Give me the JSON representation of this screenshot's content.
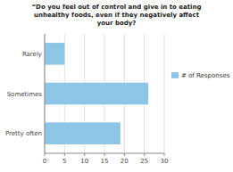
{
  "chart_data": {
    "type": "bar",
    "orientation": "horizontal",
    "title": "“Do you feel out of control and give in to eating\nunhealthy foods, even if they negatively affect\nyour body?",
    "categories": [
      "Pretty often",
      "Sometimes",
      "Rarely"
    ],
    "series": [
      {
        "name": "# of Responses",
        "color": "#8ec6e8",
        "values": [
          19,
          26,
          5
        ]
      }
    ],
    "xlim": [
      0,
      30
    ],
    "xticks": [
      0,
      5,
      10,
      15,
      20,
      25,
      30
    ],
    "grid": true,
    "legend": "right"
  }
}
